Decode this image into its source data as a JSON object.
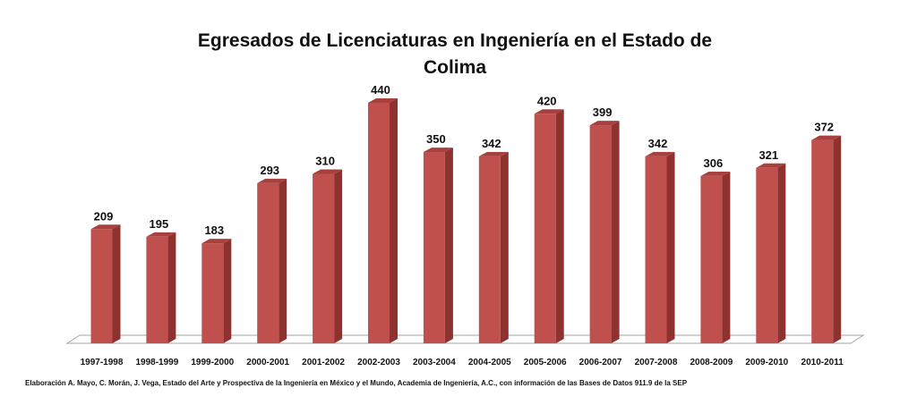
{
  "chart_data": {
    "type": "bar",
    "title_lines": [
      "Egresados de Licenciaturas en Ingeniería en el Estado de",
      "Colima"
    ],
    "categories": [
      "1997-1998",
      "1998-1999",
      "1999-2000",
      "2000-2001",
      "2001-2002",
      "2002-2003",
      "2003-2004",
      "2004-2005",
      "2005-2006",
      "2006-2007",
      "2007-2008",
      "2008-2009",
      "2009-2010",
      "2010-2011"
    ],
    "values": [
      209,
      195,
      183,
      293,
      310,
      440,
      350,
      342,
      420,
      399,
      342,
      306,
      321,
      372
    ],
    "value_labels": [
      "209",
      "195",
      "183",
      "293",
      "310",
      "440",
      "350",
      "342",
      "420",
      "399",
      "342",
      "306",
      "321",
      "372"
    ],
    "ylim": [
      0,
      440
    ],
    "xlabel": "",
    "ylabel": "",
    "grid": false,
    "legend": "none",
    "style": "3d-column",
    "colors": {
      "bar_front": "#c0504d",
      "bar_side": "#8e3230",
      "bar_top": "#a8403e",
      "floor": "#ffffff",
      "floor_edge": "#a6a6a6"
    }
  },
  "source_note": "Elaboración A. Mayo, C. Morán, J. Vega, Estado del Arte y Prospectiva de la Ingeniería en México y el Mundo, Academia de Ingeniería, A.C., con información de las Bases de Datos  911.9  de la SEP"
}
